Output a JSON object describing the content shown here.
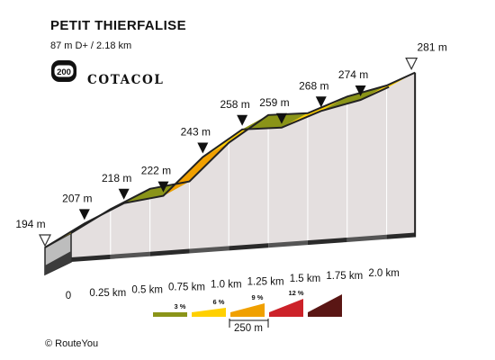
{
  "header": {
    "title": "PETIT THIERFALISE",
    "subtitle": "87 m D+ / 2.18 km",
    "badge_number": "200",
    "brand": "COTACOL",
    "badge_icon": "cotacol-badge-icon"
  },
  "footer": {
    "text": "© RouteYou"
  },
  "colors": {
    "grade_0_3": "#8a9418",
    "grade_3_6": "#ffd000",
    "grade_6_9": "#f0a000",
    "grade_9_12": "#cc2229",
    "grade_12_plus": "#5a1614",
    "wall": "#e4dfdf",
    "base": "#2a2a2a"
  },
  "chart_data": {
    "type": "area",
    "title": "PETIT THIERFALISE",
    "xlabel": "",
    "ylabel": "",
    "x_unit": "km",
    "y_unit": "m",
    "points": [
      {
        "x": 0.0,
        "y": 194,
        "label": "194 m",
        "marker": "open"
      },
      {
        "x": 0.25,
        "y": 207,
        "label": "207 m",
        "marker": "filled"
      },
      {
        "x": 0.5,
        "y": 218,
        "label": "218 m",
        "marker": "filled"
      },
      {
        "x": 0.75,
        "y": 222,
        "label": "222 m",
        "marker": "filled"
      },
      {
        "x": 1.0,
        "y": 243,
        "label": "243 m",
        "marker": "filled"
      },
      {
        "x": 1.25,
        "y": 258,
        "label": "258 m",
        "marker": "filled"
      },
      {
        "x": 1.5,
        "y": 259,
        "label": "259 m",
        "marker": "filled"
      },
      {
        "x": 1.75,
        "y": 268,
        "label": "268 m",
        "marker": "filled"
      },
      {
        "x": 2.0,
        "y": 274,
        "label": "274 m",
        "marker": "filled"
      },
      {
        "x": 2.18,
        "y": 281,
        "label": "281 m",
        "marker": "open"
      }
    ],
    "segments": [
      {
        "from": 0.0,
        "to": 0.25,
        "grade_class": "3-6"
      },
      {
        "from": 0.25,
        "to": 0.5,
        "grade_class": "3-6"
      },
      {
        "from": 0.5,
        "to": 0.75,
        "grade_class": "0-3"
      },
      {
        "from": 0.75,
        "to": 1.0,
        "grade_class": "6-9"
      },
      {
        "from": 1.0,
        "to": 1.25,
        "grade_class": "3-6"
      },
      {
        "from": 1.25,
        "to": 1.5,
        "grade_class": "0-3"
      },
      {
        "from": 1.5,
        "to": 1.75,
        "grade_class": "3-6"
      },
      {
        "from": 1.75,
        "to": 2.0,
        "grade_class": "0-3"
      },
      {
        "from": 2.0,
        "to": 2.18,
        "grade_class": "3-6"
      }
    ],
    "x_ticks": [
      "0",
      "0.25 km",
      "0.5 km",
      "0.75 km",
      "1.0 km",
      "1.25 km",
      "1.5 km",
      "1.75 km",
      "2.0 km"
    ],
    "legend": {
      "placement": "bottom-center",
      "entries": [
        {
          "label": "3 %",
          "grade_class": "0-3"
        },
        {
          "label": "6 %",
          "grade_class": "3-6"
        },
        {
          "label": "9 %",
          "grade_class": "6-9"
        },
        {
          "label": "12 %",
          "grade_class": "9-12"
        },
        {
          "label": "",
          "grade_class": "12+"
        }
      ],
      "scale_label": "250 m"
    }
  }
}
